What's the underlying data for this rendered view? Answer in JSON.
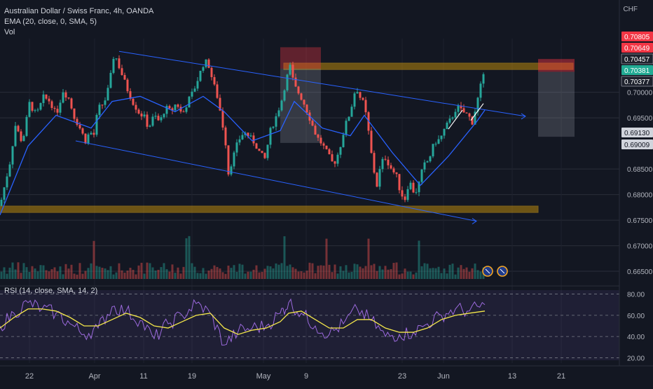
{
  "header": {
    "symbol_title": "Australian Dollar / Swiss Franc, 4h, OANDA",
    "ema_label": "EMA (20, close, 0, SMA, 5)",
    "vol_label": "Vol",
    "currency": "CHF"
  },
  "rsi": {
    "label": "RSI (14, close, SMA, 14, 2)",
    "ticks": [
      "80.00",
      "60.00",
      "40.00",
      "20.00"
    ]
  },
  "price_badges": [
    {
      "value": "0.70805",
      "color": "#f23645"
    },
    {
      "value": "0.70649",
      "color": "#f23645"
    },
    {
      "value": "0.70457",
      "color": "#1e222d"
    },
    {
      "value": "0.70381",
      "color": "#22ab94"
    },
    {
      "value": "0.70377",
      "color": "#1e222d"
    },
    {
      "value": "0.69130",
      "color": "#d1d4dc"
    },
    {
      "value": "0.69009",
      "color": "#d1d4dc"
    }
  ],
  "colors": {
    "background": "#131722",
    "up": "#26a69a",
    "down": "#ef5350",
    "ema": "#2962ff",
    "trendline": "#2962ff",
    "zone": "#b8860b",
    "rsi_line": "#9c6ade",
    "rsi_ma": "#f5e84a"
  },
  "chart_data": {
    "type": "candlestick",
    "timeframe": "4h",
    "x_tick_labels": [
      "22",
      "Apr",
      "11",
      "19",
      "May",
      "9",
      "23",
      "Jun",
      "13",
      "21"
    ],
    "y_tick_labels": [
      "0.70000",
      "0.69500",
      "0.68500",
      "0.68000",
      "0.67500",
      "0.67000",
      "0.66500"
    ],
    "ylim": [
      0.6635,
      0.7105
    ],
    "close_path": [
      [
        0,
        0.6778
      ],
      [
        14,
        0.6862
      ],
      [
        22,
        0.6935
      ],
      [
        32,
        0.6901
      ],
      [
        42,
        0.6978
      ],
      [
        52,
        0.6955
      ],
      [
        62,
        0.699
      ],
      [
        72,
        0.6982
      ],
      [
        80,
        0.6955
      ],
      [
        90,
        0.7003
      ],
      [
        98,
        0.6988
      ],
      [
        106,
        0.6952
      ],
      [
        114,
        0.693
      ],
      [
        122,
        0.6905
      ],
      [
        128,
        0.6922
      ],
      [
        134,
        0.6917
      ],
      [
        140,
        0.6968
      ],
      [
        146,
        0.6976
      ],
      [
        152,
        0.699
      ],
      [
        158,
        0.7032
      ],
      [
        163,
        0.7078
      ],
      [
        168,
        0.7058
      ],
      [
        174,
        0.7035
      ],
      [
        182,
        0.7005
      ],
      [
        190,
        0.698
      ],
      [
        198,
        0.6961
      ],
      [
        206,
        0.6951
      ],
      [
        212,
        0.693
      ],
      [
        220,
        0.6955
      ],
      [
        228,
        0.6941
      ],
      [
        236,
        0.697
      ],
      [
        244,
        0.6962
      ],
      [
        252,
        0.698
      ],
      [
        260,
        0.6955
      ],
      [
        268,
        0.6982
      ],
      [
        276,
        0.7002
      ],
      [
        284,
        0.7032
      ],
      [
        292,
        0.7062
      ],
      [
        298,
        0.7052
      ],
      [
        304,
        0.702
      ],
      [
        310,
        0.6992
      ],
      [
        316,
        0.6951
      ],
      [
        322,
        0.6901
      ],
      [
        326,
        0.6842
      ],
      [
        332,
        0.687
      ],
      [
        340,
        0.6905
      ],
      [
        348,
        0.6922
      ],
      [
        356,
        0.6913
      ],
      [
        364,
        0.69
      ],
      [
        372,
        0.6878
      ],
      [
        378,
        0.687
      ],
      [
        386,
        0.6925
      ],
      [
        394,
        0.6952
      ],
      [
        402,
        0.6985
      ],
      [
        408,
        0.7022
      ],
      [
        414,
        0.705
      ],
      [
        420,
        0.7012
      ],
      [
        428,
        0.6995
      ],
      [
        436,
        0.6972
      ],
      [
        444,
        0.6942
      ],
      [
        452,
        0.6913
      ],
      [
        460,
        0.6898
      ],
      [
        468,
        0.6878
      ],
      [
        476,
        0.6858
      ],
      [
        484,
        0.6885
      ],
      [
        492,
        0.6932
      ],
      [
        500,
        0.6962
      ],
      [
        508,
        0.7012
      ],
      [
        514,
        0.699
      ],
      [
        520,
        0.6975
      ],
      [
        526,
        0.6922
      ],
      [
        532,
        0.6858
      ],
      [
        538,
        0.6818
      ],
      [
        544,
        0.6862
      ],
      [
        550,
        0.6872
      ],
      [
        558,
        0.6852
      ],
      [
        566,
        0.6835
      ],
      [
        572,
        0.6802
      ],
      [
        578,
        0.6792
      ],
      [
        584,
        0.6828
      ],
      [
        592,
        0.68
      ],
      [
        598,
        0.6822
      ],
      [
        604,
        0.6855
      ],
      [
        612,
        0.6868
      ],
      [
        620,
        0.6902
      ],
      [
        628,
        0.6908
      ],
      [
        636,
        0.6932
      ],
      [
        644,
        0.6948
      ],
      [
        652,
        0.6972
      ],
      [
        660,
        0.6962
      ],
      [
        668,
        0.6955
      ],
      [
        674,
        0.6942
      ],
      [
        680,
        0.6975
      ],
      [
        686,
        0.7012
      ],
      [
        692,
        0.7038
      ]
    ],
    "ema_path": [
      [
        0,
        0.676
      ],
      [
        40,
        0.6895
      ],
      [
        80,
        0.6955
      ],
      [
        130,
        0.693
      ],
      [
        160,
        0.6982
      ],
      [
        200,
        0.6992
      ],
      [
        250,
        0.6962
      ],
      [
        290,
        0.6992
      ],
      [
        320,
        0.6962
      ],
      [
        360,
        0.6905
      ],
      [
        400,
        0.6925
      ],
      [
        420,
        0.6982
      ],
      [
        460,
        0.693
      ],
      [
        500,
        0.6915
      ],
      [
        520,
        0.6955
      ],
      [
        560,
        0.6882
      ],
      [
        600,
        0.6818
      ],
      [
        640,
        0.6875
      ],
      [
        680,
        0.6942
      ],
      [
        692,
        0.6965
      ]
    ],
    "trendlines": [
      {
        "from": [
          170,
          0.708
        ],
        "to": [
          750,
          0.6953
        ]
      },
      {
        "from": [
          108,
          0.6905
        ],
        "to": [
          680,
          0.6748
        ]
      },
      {
        "from": [
          640,
          0.6928
        ],
        "to": [
          660,
          0.6965
        ]
      },
      {
        "from": [
          672,
          0.6945
        ],
        "to": [
          690,
          0.6978
        ]
      }
    ],
    "resistance_zone": [
      0.70445,
      0.7057
    ],
    "support_zone": [
      0.6765,
      0.67775
    ],
    "volume": [],
    "rsi_ylim": [
      15,
      85
    ],
    "rsi_path": [
      [
        0,
        50
      ],
      [
        20,
        62
      ],
      [
        40,
        72
      ],
      [
        60,
        66
      ],
      [
        80,
        62
      ],
      [
        100,
        52
      ],
      [
        120,
        42
      ],
      [
        140,
        48
      ],
      [
        160,
        68
      ],
      [
        180,
        64
      ],
      [
        200,
        55
      ],
      [
        220,
        38
      ],
      [
        240,
        52
      ],
      [
        260,
        60
      ],
      [
        280,
        71
      ],
      [
        300,
        62
      ],
      [
        320,
        32
      ],
      [
        340,
        45
      ],
      [
        360,
        48
      ],
      [
        380,
        50
      ],
      [
        400,
        62
      ],
      [
        412,
        72
      ],
      [
        430,
        62
      ],
      [
        450,
        50
      ],
      [
        470,
        42
      ],
      [
        490,
        52
      ],
      [
        510,
        66
      ],
      [
        530,
        55
      ],
      [
        550,
        40
      ],
      [
        570,
        42
      ],
      [
        590,
        44
      ],
      [
        610,
        52
      ],
      [
        630,
        60
      ],
      [
        650,
        66
      ],
      [
        670,
        64
      ],
      [
        692,
        70
      ]
    ],
    "rsi_ma_path": [
      [
        0,
        48
      ],
      [
        20,
        58
      ],
      [
        40,
        66
      ],
      [
        60,
        66
      ],
      [
        80,
        64
      ],
      [
        100,
        58
      ],
      [
        120,
        50
      ],
      [
        140,
        50
      ],
      [
        160,
        56
      ],
      [
        180,
        62
      ],
      [
        200,
        58
      ],
      [
        220,
        50
      ],
      [
        240,
        48
      ],
      [
        260,
        54
      ],
      [
        280,
        60
      ],
      [
        300,
        62
      ],
      [
        320,
        48
      ],
      [
        340,
        42
      ],
      [
        360,
        46
      ],
      [
        380,
        48
      ],
      [
        400,
        54
      ],
      [
        412,
        62
      ],
      [
        430,
        64
      ],
      [
        450,
        56
      ],
      [
        470,
        48
      ],
      [
        490,
        48
      ],
      [
        510,
        56
      ],
      [
        530,
        56
      ],
      [
        550,
        48
      ],
      [
        570,
        44
      ],
      [
        590,
        44
      ],
      [
        610,
        48
      ],
      [
        630,
        56
      ],
      [
        650,
        60
      ],
      [
        670,
        62
      ],
      [
        692,
        64
      ]
    ]
  }
}
